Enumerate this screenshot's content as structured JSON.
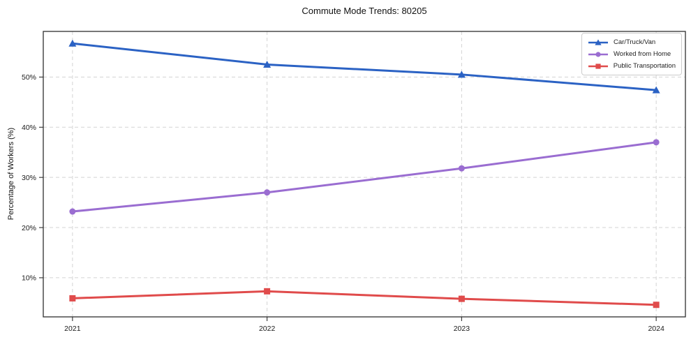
{
  "chart": {
    "title": "Commute Mode Trends: 80205",
    "y_axis_label": "Percentage of Workers (%)"
  },
  "chart_data": {
    "type": "line",
    "title": "Commute Mode Trends: 80205",
    "xlabel": "",
    "ylabel": "Percentage of Workers (%)",
    "categories": [
      "2021",
      "2022",
      "2023",
      "2024"
    ],
    "series": [
      {
        "name": "Car/Truck/Van",
        "color": "#2b62c4",
        "marker": "triangle",
        "values": [
          56.7,
          52.5,
          50.5,
          47.4
        ]
      },
      {
        "name": "Worked from Home",
        "color": "#9a6dd1",
        "marker": "circle",
        "values": [
          23.2,
          27.0,
          31.8,
          37.0
        ]
      },
      {
        "name": "Public Transportation",
        "color": "#e04b4b",
        "marker": "square",
        "values": [
          5.9,
          7.3,
          5.8,
          4.6
        ]
      }
    ],
    "yticks": [
      10,
      20,
      30,
      40,
      50
    ],
    "ytick_labels": [
      "10%",
      "20%",
      "30%",
      "40%",
      "50%"
    ],
    "ylim": [
      2.2,
      59.1
    ],
    "grid": true,
    "grid_style": "dashed",
    "legend_position": "upper right",
    "axis_color": "#2e2e2e",
    "grid_color": "#d3d3d3",
    "background_color": "#ffffff"
  }
}
